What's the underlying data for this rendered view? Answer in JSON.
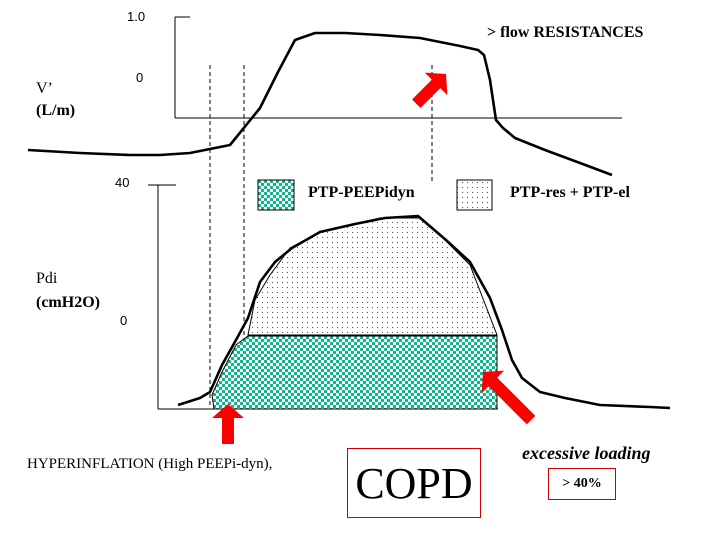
{
  "top_graph": {
    "tick_high": "1.0",
    "tick_zero": "0",
    "y_label_line1": "V’",
    "y_label_line2": "(L/m)",
    "annotation": "> flow RESISTANCES"
  },
  "bottom_graph": {
    "tick_high": "40",
    "tick_zero": "0",
    "y_label_line1": "Pdi",
    "y_label_line2": "(cmH2O)"
  },
  "legend": {
    "item1": "PTP-PEEPidyn",
    "item2": "PTP-res + PTP-el"
  },
  "captions": {
    "hyperinflation": "HYPERINFLATION (High PEEPi-dyn),",
    "copd": "COPD",
    "excessive": "excessive loading",
    "percent": "> 40%"
  },
  "colors": {
    "teal": "#16b48c",
    "arrow": "#ff0000",
    "box_border": "#cc0000"
  }
}
